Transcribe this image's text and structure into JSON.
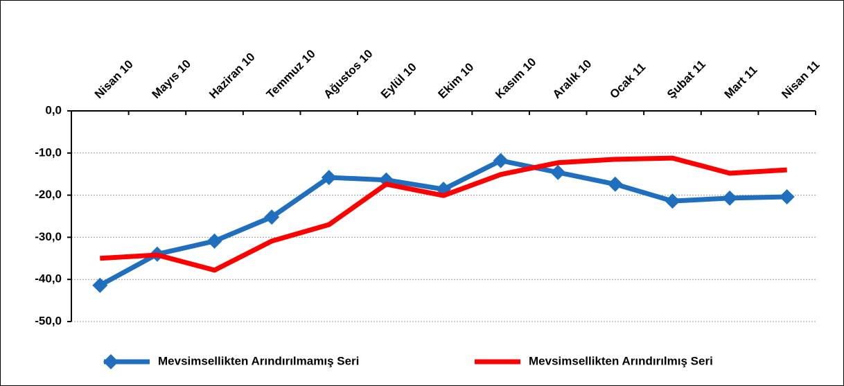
{
  "chart_data": {
    "type": "line",
    "categories": [
      "Nisan 10",
      "Mayıs 10",
      "Haziran 10",
      "Temmuz 10",
      "Ağustos 10",
      "Eylül 10",
      "Ekim 10",
      "Kasım 10",
      "Aralık 10",
      "Ocak 11",
      "Şubat 11",
      "Mart 11",
      "Nisan 11"
    ],
    "series": [
      {
        "name": "Mevsimsellikten Arındırılmamış Seri",
        "color": "#1f6fbe",
        "marker": "diamond",
        "values": [
          -41.4,
          -34.0,
          -30.9,
          -25.2,
          -15.8,
          -16.4,
          -18.6,
          -11.8,
          -14.6,
          -17.4,
          -21.4,
          -20.7,
          -20.4
        ]
      },
      {
        "name": "Mevsimsellikten Arındırılmış Seri",
        "color": "#ff0000",
        "values": [
          -35.0,
          -34.2,
          -37.8,
          -30.9,
          -27.0,
          -17.4,
          -20.1,
          -15.1,
          -12.3,
          -11.5,
          -11.2,
          -14.8,
          -14.0
        ]
      }
    ],
    "ylim": [
      -50,
      0
    ],
    "yticks": [
      {
        "value": 0,
        "label": "0,0"
      },
      {
        "value": -10,
        "label": "-10,0"
      },
      {
        "value": -20,
        "label": "-20,0"
      },
      {
        "value": -30,
        "label": "-30,0"
      },
      {
        "value": -40,
        "label": "-40,0"
      },
      {
        "value": -50,
        "label": "-50,0"
      }
    ],
    "grid": true,
    "legend": "bottom"
  }
}
